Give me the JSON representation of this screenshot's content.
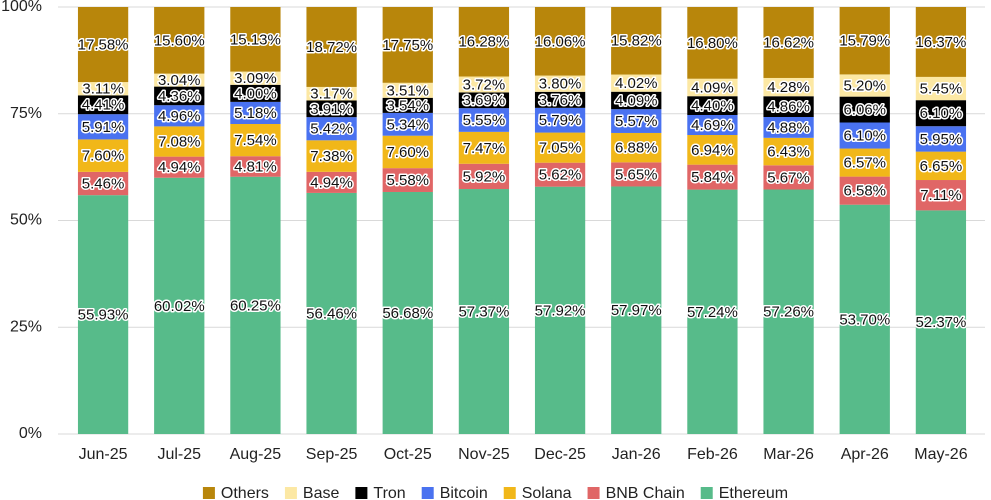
{
  "chart_data": {
    "type": "stacked_bar",
    "categories": [
      "Jun-25",
      "Jul-25",
      "Aug-25",
      "Sep-25",
      "Oct-25",
      "Nov-25",
      "Dec-25",
      "Jan-26",
      "Feb-26",
      "Mar-26",
      "Apr-26",
      "May-26"
    ],
    "series": [
      {
        "name": "Ethereum",
        "color": "#57bb8a",
        "values": [
          55.93,
          60.02,
          60.25,
          56.46,
          56.68,
          57.37,
          57.92,
          57.97,
          57.24,
          57.26,
          53.7,
          52.37
        ],
        "value_labels": [
          "55.93%",
          "60.02%",
          "60.25%",
          "56.46%",
          "56.68%",
          "57.37%",
          "57.92%",
          "57.97%",
          "57.24%",
          "57.26%",
          "53.70%",
          "52.37%"
        ]
      },
      {
        "name": "BNB Chain",
        "color": "#e06666",
        "values": [
          5.46,
          4.94,
          4.81,
          4.94,
          5.58,
          5.92,
          5.62,
          5.65,
          5.84,
          5.67,
          6.58,
          7.11
        ],
        "value_labels": [
          "5.46%",
          "4.94%",
          "4.81%",
          "4.94%",
          "5.58%",
          "5.92%",
          "5.62%",
          "5.65%",
          "5.84%",
          "5.67%",
          "6.58%",
          "7.11%"
        ]
      },
      {
        "name": "Solana",
        "color": "#f1b719",
        "values": [
          7.6,
          7.08,
          7.54,
          7.38,
          7.6,
          7.47,
          7.05,
          6.88,
          6.94,
          6.43,
          6.57,
          6.65
        ],
        "value_labels": [
          "7.60%",
          "7.08%",
          "7.54%",
          "7.38%",
          "7.60%",
          "7.47%",
          "7.05%",
          "6.88%",
          "6.94%",
          "6.43%",
          "6.57%",
          "6.65%"
        ]
      },
      {
        "name": "Bitcoin",
        "color": "#4a72f0",
        "values": [
          5.91,
          4.96,
          5.18,
          5.42,
          5.34,
          5.55,
          5.79,
          5.57,
          4.69,
          4.88,
          6.1,
          5.95
        ],
        "value_labels": [
          "5.91%",
          "4.96%",
          "5.18%",
          "5.42%",
          "5.34%",
          "5.55%",
          "5.79%",
          "5.57%",
          "4.69%",
          "4.88%",
          "6.10%",
          "5.95%"
        ]
      },
      {
        "name": "Tron",
        "color": "#000000",
        "values": [
          4.41,
          4.36,
          4.0,
          3.91,
          3.54,
          3.69,
          3.76,
          4.09,
          4.4,
          4.86,
          6.06,
          6.1
        ],
        "value_labels": [
          "4.41%",
          "4.36%",
          "4.00%",
          "3.91%",
          "3.54%",
          "3.69%",
          "3.76%",
          "4.09%",
          "4.40%",
          "4.86%",
          "6.06%",
          "6.10%"
        ]
      },
      {
        "name": "Base",
        "color": "#fce8a4",
        "values": [
          3.11,
          3.04,
          3.09,
          3.17,
          3.51,
          3.72,
          3.8,
          4.02,
          4.09,
          4.28,
          5.2,
          5.45
        ],
        "value_labels": [
          "3.11%",
          "3.04%",
          "3.09%",
          "3.17%",
          "3.51%",
          "3.72%",
          "3.80%",
          "4.02%",
          "4.09%",
          "4.28%",
          "5.20%",
          "5.45%"
        ]
      },
      {
        "name": "Others",
        "color": "#b8860b",
        "values": [
          17.58,
          15.6,
          15.13,
          18.72,
          17.75,
          16.28,
          16.06,
          15.82,
          16.8,
          16.62,
          15.79,
          16.37
        ],
        "value_labels": [
          "17.58%",
          "15.60%",
          "15.13%",
          "18.72%",
          "17.75%",
          "16.28%",
          "16.06%",
          "15.82%",
          "16.80%",
          "16.62%",
          "15.79%",
          "16.37%"
        ]
      }
    ],
    "ylim": [
      0,
      100
    ],
    "yticks": [
      {
        "value": 0,
        "label": "0%"
      },
      {
        "value": 25,
        "label": "25%"
      },
      {
        "value": 50,
        "label": "50%"
      },
      {
        "value": 75,
        "label": "75%"
      },
      {
        "value": 100,
        "label": "100%"
      }
    ],
    "grid": true,
    "legend": "bottom"
  }
}
